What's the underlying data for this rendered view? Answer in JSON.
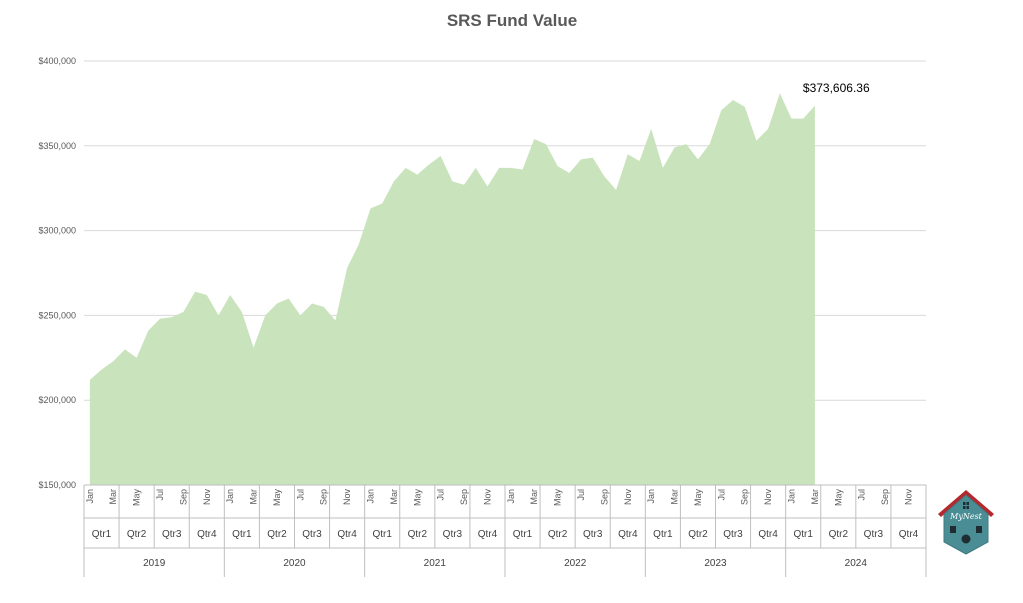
{
  "colors": {
    "area": "#c9e3bd",
    "grid": "#d9d9d9",
    "axis": "#bfbfbf",
    "text": "#595959",
    "logo_body": "#4a8d95",
    "logo_roof": "#b5282e"
  },
  "logo": {
    "text": "MyNest",
    "icon": "birdhouse-logo-icon"
  },
  "chart_data": {
    "type": "area",
    "title": "SRS Fund Value",
    "xlabel": "",
    "ylabel": "",
    "ylim": [
      150000,
      400000
    ],
    "yticks": [
      "$150,000",
      "$200,000",
      "$250,000",
      "$300,000",
      "$350,000",
      "$400,000"
    ],
    "ytick_values": [
      150000,
      200000,
      250000,
      300000,
      350000,
      400000
    ],
    "grid": true,
    "years": [
      "2019",
      "2020",
      "2021",
      "2022",
      "2023",
      "2024"
    ],
    "quarters": [
      "Qtr1",
      "Qtr2",
      "Qtr3",
      "Qtr4"
    ],
    "month_labels": [
      "Jan",
      "Mar",
      "May",
      "Jul",
      "Sep",
      "Nov"
    ],
    "values": [
      212000,
      218000,
      223000,
      230000,
      225000,
      241000,
      248000,
      249000,
      252000,
      264000,
      262000,
      250000,
      262000,
      252000,
      231000,
      250000,
      257000,
      260000,
      250000,
      257000,
      255000,
      247000,
      278000,
      292000,
      313000,
      316000,
      329000,
      337000,
      333000,
      339000,
      344000,
      329000,
      327000,
      337000,
      326000,
      337000,
      337000,
      336000,
      354000,
      351000,
      338000,
      334000,
      342000,
      343000,
      332000,
      324000,
      345000,
      341000,
      360000,
      337000,
      349000,
      351000,
      342000,
      351000,
      371000,
      377000,
      373000,
      353000,
      360000,
      381000,
      366000,
      366000,
      373606.36
    ],
    "data_label": "$373,606.36"
  }
}
